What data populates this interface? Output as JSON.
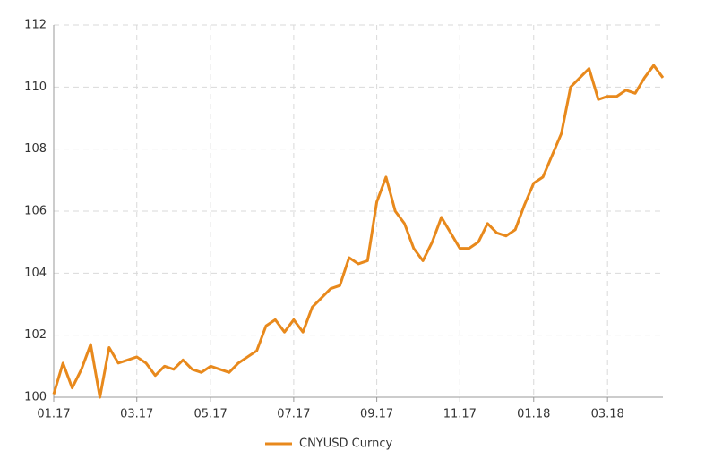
{
  "chart_data": {
    "type": "line",
    "categories": [
      "01.17",
      null,
      null,
      null,
      null,
      null,
      null,
      null,
      null,
      "03.17",
      null,
      null,
      null,
      null,
      null,
      null,
      null,
      "05.17",
      null,
      null,
      null,
      null,
      null,
      null,
      null,
      null,
      "07.17",
      null,
      null,
      null,
      null,
      null,
      null,
      null,
      null,
      "09.17",
      null,
      null,
      null,
      null,
      null,
      null,
      null,
      null,
      "11.17",
      null,
      null,
      null,
      null,
      null,
      null,
      null,
      "01.18",
      null,
      null,
      null,
      null,
      null,
      null,
      null,
      "03.18",
      null,
      null,
      null,
      null,
      null,
      null
    ],
    "series": [
      {
        "name": "CNYUSD Curncy",
        "color": "#e8891c",
        "values": [
          100.1,
          101.1,
          100.3,
          100.9,
          101.7,
          100.0,
          101.6,
          101.1,
          101.2,
          101.3,
          101.1,
          100.7,
          101.0,
          100.9,
          101.2,
          100.9,
          100.8,
          101.0,
          100.9,
          100.8,
          101.1,
          101.3,
          101.5,
          102.3,
          102.5,
          102.1,
          102.5,
          102.1,
          102.9,
          103.2,
          103.5,
          103.6,
          104.5,
          104.3,
          104.4,
          106.3,
          107.1,
          106.0,
          105.6,
          104.8,
          104.4,
          105.0,
          105.8,
          105.3,
          104.8,
          104.8,
          105.0,
          105.6,
          105.3,
          105.2,
          105.4,
          106.2,
          106.9,
          107.1,
          107.8,
          108.5,
          110.0,
          110.3,
          110.6,
          109.6,
          109.7,
          109.7,
          109.9,
          109.8,
          110.3,
          110.7,
          110.3
        ]
      }
    ],
    "ylim": [
      100,
      112
    ],
    "yticks": [
      100,
      102,
      104,
      106,
      108,
      110,
      112
    ],
    "grid": true,
    "legend": "bottom"
  }
}
